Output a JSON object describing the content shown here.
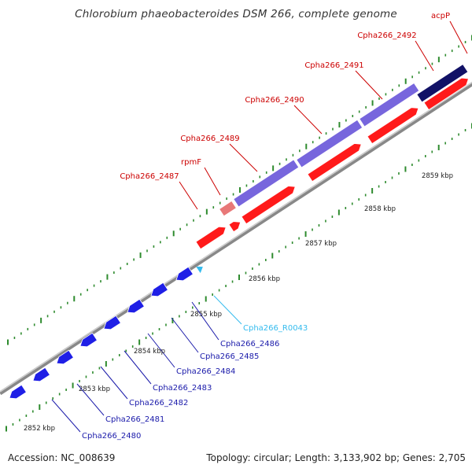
{
  "title": "Chlorobium phaeobacteroides DSM 266, complete genome",
  "footer": {
    "accession": "Accession: NC_008639",
    "summary": "Topology: circular; Length: 3,133,902 bp; Genes: 2,705"
  },
  "colors": {
    "forward_gene": "#ff1a1a",
    "forward_pseudo": "#e87878",
    "forward_label": "#cc0000",
    "reverse_gene": "#1f1fe6",
    "reverse_label": "#1a1aaa",
    "rna": "#33bbee",
    "rna_label": "#33bbee",
    "cds_band": "#7766dd",
    "cds_band_dark": "#111166",
    "tick": "#2e8b2e"
  },
  "kbp_labels": [
    "2852 kbp",
    "2853 kbp",
    "2854 kbp",
    "2855 kbp",
    "2856 kbp",
    "2857 kbp",
    "2858 kbp",
    "2859 kbp"
  ],
  "forward_genes": [
    {
      "label": "Cpha266_2487"
    },
    {
      "label": "rpmF"
    },
    {
      "label": "Cpha266_2489"
    },
    {
      "label": "Cpha266_2490"
    },
    {
      "label": "Cpha266_2491"
    },
    {
      "label": "Cpha266_2492"
    },
    {
      "label": "acpP"
    }
  ],
  "reverse_genes": [
    {
      "label": "Cpha266_2480"
    },
    {
      "label": "Cpha266_2481"
    },
    {
      "label": "Cpha266_2482"
    },
    {
      "label": "Cpha266_2483"
    },
    {
      "label": "Cpha266_2484"
    },
    {
      "label": "Cpha266_2485"
    },
    {
      "label": "Cpha266_2486"
    }
  ],
  "rna_genes": [
    {
      "label": "Cpha266_R0043"
    }
  ]
}
